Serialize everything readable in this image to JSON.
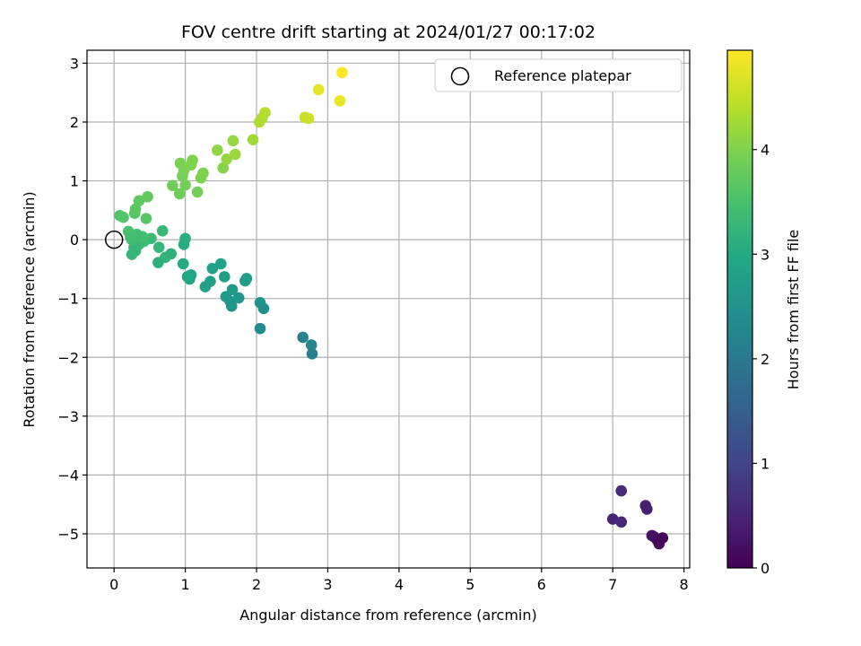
{
  "chart_data": {
    "type": "scatter",
    "title": "FOV centre drift starting at 2024/01/27 00:17:02",
    "xlabel": "Angular distance from reference (arcmin)",
    "ylabel": "Rotation from reference (arcmin)",
    "xlim": [
      -0.38,
      8.08
    ],
    "ylim": [
      -5.58,
      3.22
    ],
    "xticks": [
      0,
      1,
      2,
      3,
      4,
      5,
      6,
      7,
      8
    ],
    "xtick_labels": [
      "0",
      "1",
      "2",
      "3",
      "4",
      "5",
      "6",
      "7",
      "8"
    ],
    "yticks": [
      3,
      2,
      1,
      0,
      -1,
      -2,
      -3,
      -4,
      -5
    ],
    "ytick_labels": [
      "3",
      "2",
      "1",
      "0",
      "−1",
      "−2",
      "−3",
      "−4",
      "−5"
    ],
    "grid": true,
    "legend": {
      "position": "top-right",
      "entries": [
        "Reference platepar"
      ]
    },
    "reference_point": {
      "x": 0,
      "y": 0,
      "marker": "open-circle"
    },
    "colorbar": {
      "label": "Hours from first FF file",
      "colormap": "viridis",
      "range": [
        0,
        4.95
      ],
      "ticks": [
        0,
        1,
        2,
        3,
        4
      ],
      "tick_labels": [
        "0",
        "1",
        "2",
        "3",
        "4"
      ]
    },
    "series": [
      {
        "points": [
          {
            "x": 7.12,
            "y": -4.27,
            "c": 0.6
          },
          {
            "x": 7.0,
            "y": -4.75,
            "c": 0.5
          },
          {
            "x": 7.12,
            "y": -4.8,
            "c": 0.55
          },
          {
            "x": 7.46,
            "y": -4.52,
            "c": 0.45
          },
          {
            "x": 7.48,
            "y": -4.58,
            "c": 0.42
          },
          {
            "x": 7.55,
            "y": -5.03,
            "c": 0.3
          },
          {
            "x": 7.58,
            "y": -5.05,
            "c": 0.25
          },
          {
            "x": 7.62,
            "y": -5.1,
            "c": 0.2
          },
          {
            "x": 7.65,
            "y": -5.17,
            "c": 0.15
          },
          {
            "x": 7.7,
            "y": -5.07,
            "c": 0.1
          },
          {
            "x": 2.65,
            "y": -1.66,
            "c": 2.2
          },
          {
            "x": 2.77,
            "y": -1.79,
            "c": 2.25
          },
          {
            "x": 2.78,
            "y": -1.94,
            "c": 2.15
          },
          {
            "x": 2.05,
            "y": -1.51,
            "c": 2.4
          },
          {
            "x": 2.05,
            "y": -1.07,
            "c": 2.5
          },
          {
            "x": 2.1,
            "y": -1.17,
            "c": 2.45
          },
          {
            "x": 1.63,
            "y": -1.05,
            "c": 2.6
          },
          {
            "x": 1.65,
            "y": -1.13,
            "c": 2.55
          },
          {
            "x": 1.57,
            "y": -0.97,
            "c": 2.65
          },
          {
            "x": 1.66,
            "y": -0.85,
            "c": 2.7
          },
          {
            "x": 1.75,
            "y": -0.99,
            "c": 2.6
          },
          {
            "x": 1.84,
            "y": -0.7,
            "c": 2.75
          },
          {
            "x": 1.86,
            "y": -0.66,
            "c": 2.75
          },
          {
            "x": 1.55,
            "y": -0.63,
            "c": 2.8
          },
          {
            "x": 1.5,
            "y": -0.41,
            "c": 2.85
          },
          {
            "x": 1.38,
            "y": -0.49,
            "c": 2.85
          },
          {
            "x": 1.35,
            "y": -0.71,
            "c": 2.8
          },
          {
            "x": 1.28,
            "y": -0.8,
            "c": 2.8
          },
          {
            "x": 1.06,
            "y": -0.67,
            "c": 2.9
          },
          {
            "x": 1.03,
            "y": -0.63,
            "c": 2.95
          },
          {
            "x": 1.08,
            "y": -0.6,
            "c": 2.95
          },
          {
            "x": 0.97,
            "y": -0.41,
            "c": 3.0
          },
          {
            "x": 0.98,
            "y": -0.08,
            "c": 3.05
          },
          {
            "x": 1.0,
            "y": 0.02,
            "c": 3.1
          },
          {
            "x": 0.8,
            "y": -0.24,
            "c": 3.15
          },
          {
            "x": 0.72,
            "y": -0.3,
            "c": 3.2
          },
          {
            "x": 0.62,
            "y": -0.39,
            "c": 3.15
          },
          {
            "x": 0.63,
            "y": -0.13,
            "c": 3.25
          },
          {
            "x": 0.68,
            "y": 0.15,
            "c": 3.3
          },
          {
            "x": 0.52,
            "y": 0.02,
            "c": 3.35
          },
          {
            "x": 0.42,
            "y": -0.03,
            "c": 3.4
          },
          {
            "x": 0.35,
            "y": -0.08,
            "c": 3.35
          },
          {
            "x": 0.28,
            "y": -0.13,
            "c": 3.3
          },
          {
            "x": 0.25,
            "y": -0.25,
            "c": 3.25
          },
          {
            "x": 0.3,
            "y": -0.19,
            "c": 3.25
          },
          {
            "x": 0.25,
            "y": 0.0,
            "c": 3.4
          },
          {
            "x": 0.32,
            "y": 0.09,
            "c": 3.45
          },
          {
            "x": 0.2,
            "y": 0.14,
            "c": 3.5
          },
          {
            "x": 0.23,
            "y": 0.05,
            "c": 3.45
          },
          {
            "x": 0.4,
            "y": 0.05,
            "c": 3.45
          },
          {
            "x": 0.08,
            "y": 0.41,
            "c": 3.6
          },
          {
            "x": 0.13,
            "y": 0.38,
            "c": 3.6
          },
          {
            "x": 0.29,
            "y": 0.45,
            "c": 3.6
          },
          {
            "x": 0.3,
            "y": 0.52,
            "c": 3.65
          },
          {
            "x": 0.35,
            "y": 0.66,
            "c": 3.7
          },
          {
            "x": 0.45,
            "y": 0.36,
            "c": 3.65
          },
          {
            "x": 0.47,
            "y": 0.73,
            "c": 3.75
          },
          {
            "x": 0.82,
            "y": 0.92,
            "c": 3.85
          },
          {
            "x": 0.92,
            "y": 0.78,
            "c": 3.85
          },
          {
            "x": 0.93,
            "y": 1.3,
            "c": 3.95
          },
          {
            "x": 0.96,
            "y": 1.08,
            "c": 3.9
          },
          {
            "x": 1.0,
            "y": 0.93,
            "c": 3.9
          },
          {
            "x": 0.98,
            "y": 1.18,
            "c": 3.95
          },
          {
            "x": 1.08,
            "y": 1.27,
            "c": 4.0
          },
          {
            "x": 1.1,
            "y": 1.35,
            "c": 4.0
          },
          {
            "x": 1.17,
            "y": 0.81,
            "c": 3.9
          },
          {
            "x": 1.22,
            "y": 1.05,
            "c": 3.95
          },
          {
            "x": 1.25,
            "y": 1.13,
            "c": 4.0
          },
          {
            "x": 1.45,
            "y": 1.52,
            "c": 4.1
          },
          {
            "x": 1.53,
            "y": 1.22,
            "c": 4.05
          },
          {
            "x": 1.58,
            "y": 1.37,
            "c": 4.15
          },
          {
            "x": 1.67,
            "y": 1.68,
            "c": 4.15
          },
          {
            "x": 1.7,
            "y": 1.45,
            "c": 4.2
          },
          {
            "x": 1.95,
            "y": 1.7,
            "c": 4.25
          },
          {
            "x": 2.04,
            "y": 2.0,
            "c": 4.35
          },
          {
            "x": 2.08,
            "y": 2.07,
            "c": 4.35
          },
          {
            "x": 2.12,
            "y": 2.16,
            "c": 4.4
          },
          {
            "x": 2.68,
            "y": 2.08,
            "c": 4.55
          },
          {
            "x": 2.73,
            "y": 2.06,
            "c": 4.55
          },
          {
            "x": 2.87,
            "y": 2.55,
            "c": 4.75
          },
          {
            "x": 3.17,
            "y": 2.36,
            "c": 4.8
          },
          {
            "x": 3.2,
            "y": 2.84,
            "c": 4.95
          }
        ]
      }
    ]
  }
}
